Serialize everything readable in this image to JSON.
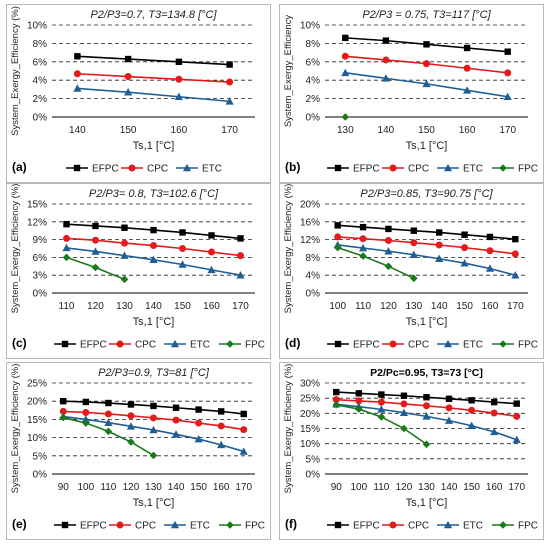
{
  "figure": {
    "background": "#ffffff",
    "series_styles": {
      "EFPC": {
        "color": "#000000",
        "marker": "square"
      },
      "CPC": {
        "color": "#e41a1c",
        "marker": "circle"
      },
      "ETC": {
        "color": "#1f5f96",
        "marker": "triangle"
      },
      "FPC": {
        "color": "#1a7a1a",
        "marker": "diamond"
      }
    }
  },
  "chart_data": [
    {
      "type": "line",
      "letter": "(a)",
      "title_prefix": "P2/P3",
      "title_rest": "=0.7, T3=134.8 [°C]",
      "title_style": "italic",
      "xlabel": "Ts,1 [°C]",
      "ylabel": "System_Exergy_Efficiency (%)",
      "x": [
        140,
        150,
        160,
        170
      ],
      "xlim": [
        135,
        175
      ],
      "ylim": [
        0,
        10
      ],
      "yticks": [
        "0%",
        "2%",
        "4%",
        "6%",
        "8%",
        "10%"
      ],
      "ytick_values": [
        0,
        2,
        4,
        6,
        8,
        10
      ],
      "grid": true,
      "legend_position": "bottom",
      "legend": [
        "EFPC",
        "CPC",
        "ETC"
      ],
      "series": [
        {
          "name": "EFPC",
          "x": [
            140,
            150,
            160,
            170
          ],
          "values": [
            6.6,
            6.3,
            6.0,
            5.7
          ]
        },
        {
          "name": "CPC",
          "x": [
            140,
            150,
            160,
            170
          ],
          "values": [
            4.7,
            4.4,
            4.1,
            3.8
          ]
        },
        {
          "name": "ETC",
          "x": [
            140,
            150,
            160,
            170
          ],
          "values": [
            3.1,
            2.7,
            2.2,
            1.7
          ]
        }
      ]
    },
    {
      "type": "line",
      "letter": "(b)",
      "title_prefix": "P2/P3",
      "title_rest": " = 0.75, T3=117 [°C]",
      "title_style": "italic",
      "xlabel": "Ts,1 [°C]",
      "ylabel": "System_Exergy_Efficiency",
      "x": [
        130,
        140,
        150,
        160,
        170
      ],
      "xlim": [
        125,
        175
      ],
      "ylim": [
        0,
        10
      ],
      "yticks": [
        "0%",
        "2%",
        "4%",
        "6%",
        "8%",
        "10%"
      ],
      "ytick_values": [
        0,
        2,
        4,
        6,
        8,
        10
      ],
      "grid": true,
      "legend_position": "bottom",
      "legend": [
        "EFPC",
        "CPC",
        "ETC",
        "FPC"
      ],
      "series": [
        {
          "name": "EFPC",
          "x": [
            130,
            140,
            150,
            160,
            170
          ],
          "values": [
            8.6,
            8.3,
            7.9,
            7.5,
            7.1
          ]
        },
        {
          "name": "CPC",
          "x": [
            130,
            140,
            150,
            160,
            170
          ],
          "values": [
            6.6,
            6.2,
            5.8,
            5.3,
            4.8
          ]
        },
        {
          "name": "ETC",
          "x": [
            130,
            140,
            150,
            160,
            170
          ],
          "values": [
            4.8,
            4.2,
            3.6,
            2.9,
            2.2
          ]
        },
        {
          "name": "FPC",
          "x": [
            130
          ],
          "values": [
            0.0
          ]
        }
      ]
    },
    {
      "type": "line",
      "letter": "(c)",
      "title_prefix": "P2/P3",
      "title_rest": "= 0.8, T3=102.6 [°C]",
      "title_style": "italic",
      "xlabel": "Ts,1 [°C]",
      "ylabel": "System_Exergy_Efficiency (%)",
      "x": [
        110,
        120,
        130,
        140,
        150,
        160,
        170
      ],
      "xlim": [
        105,
        175
      ],
      "ylim": [
        0,
        15
      ],
      "yticks": [
        "0%",
        "3%",
        "6%",
        "9%",
        "12%",
        "15%"
      ],
      "ytick_values": [
        0,
        3,
        6,
        9,
        12,
        15
      ],
      "grid": true,
      "legend_position": "bottom",
      "legend": [
        "EFPC",
        "CPC",
        "ETC",
        "FPC"
      ],
      "series": [
        {
          "name": "EFPC",
          "x": [
            110,
            120,
            130,
            140,
            150,
            160,
            170
          ],
          "values": [
            11.6,
            11.3,
            11.0,
            10.6,
            10.2,
            9.7,
            9.2
          ]
        },
        {
          "name": "CPC",
          "x": [
            110,
            120,
            130,
            140,
            150,
            160,
            170
          ],
          "values": [
            9.2,
            8.9,
            8.4,
            8.0,
            7.5,
            6.9,
            6.3
          ]
        },
        {
          "name": "ETC",
          "x": [
            110,
            120,
            130,
            140,
            150,
            160,
            170
          ],
          "values": [
            7.6,
            7.0,
            6.3,
            5.6,
            4.8,
            3.9,
            3.0
          ]
        },
        {
          "name": "FPC",
          "x": [
            110,
            120,
            130
          ],
          "values": [
            6.0,
            4.3,
            2.3
          ]
        }
      ]
    },
    {
      "type": "line",
      "letter": "(d)",
      "title_prefix": "P2/P3",
      "title_rest": "=0.85, T3=90.75 [°C]",
      "title_style": "italic",
      "xlabel": "Ts,1 [°C]",
      "ylabel": "System_Exergy_Efficiency (%)",
      "x": [
        100,
        110,
        120,
        130,
        140,
        150,
        160,
        170
      ],
      "xlim": [
        95,
        175
      ],
      "ylim": [
        0,
        20
      ],
      "yticks": [
        "0%",
        "4%",
        "8%",
        "12%",
        "16%",
        "20%"
      ],
      "ytick_values": [
        0,
        4,
        8,
        12,
        16,
        20
      ],
      "grid": true,
      "legend_position": "bottom",
      "legend": [
        "EFPC",
        "CPC",
        "ETC",
        "FPC"
      ],
      "series": [
        {
          "name": "EFPC",
          "x": [
            100,
            110,
            120,
            130,
            140,
            150,
            160,
            170
          ],
          "values": [
            15.2,
            14.8,
            14.4,
            14.0,
            13.6,
            13.1,
            12.6,
            12.1
          ]
        },
        {
          "name": "CPC",
          "x": [
            100,
            110,
            120,
            130,
            140,
            150,
            160,
            170
          ],
          "values": [
            12.6,
            12.2,
            11.8,
            11.3,
            10.8,
            10.2,
            9.5,
            8.8
          ]
        },
        {
          "name": "ETC",
          "x": [
            100,
            110,
            120,
            130,
            140,
            150,
            160,
            170
          ],
          "values": [
            10.8,
            10.1,
            9.4,
            8.6,
            7.7,
            6.7,
            5.5,
            4.0
          ]
        },
        {
          "name": "FPC",
          "x": [
            100,
            110,
            120,
            130
          ],
          "values": [
            10.2,
            8.3,
            6.0,
            3.3
          ]
        }
      ]
    },
    {
      "type": "line",
      "letter": "(e)",
      "title_prefix": "P2/P3",
      "title_rest": "=0.9, T3=81 [°C]",
      "title_style": "italic",
      "xlabel": "Ts,1 [°C]",
      "ylabel": "System_Exergy_Efficiency (%)",
      "x": [
        90,
        100,
        110,
        120,
        130,
        140,
        150,
        160,
        170
      ],
      "xlim": [
        85,
        175
      ],
      "ylim": [
        0,
        25
      ],
      "yticks": [
        "0%",
        "5%",
        "10%",
        "15%",
        "20%",
        "25%"
      ],
      "ytick_values": [
        0,
        5,
        10,
        15,
        20,
        25
      ],
      "grid": true,
      "legend_position": "bottom",
      "legend": [
        "EFPC",
        "CPC",
        "ETC",
        "FPC"
      ],
      "series": [
        {
          "name": "EFPC",
          "x": [
            90,
            100,
            110,
            120,
            130,
            140,
            150,
            160,
            170
          ],
          "values": [
            20.0,
            19.8,
            19.5,
            19.1,
            18.7,
            18.2,
            17.7,
            17.2,
            16.5
          ]
        },
        {
          "name": "CPC",
          "x": [
            90,
            100,
            110,
            120,
            130,
            140,
            150,
            160,
            170
          ],
          "values": [
            17.2,
            16.9,
            16.5,
            16.0,
            15.4,
            14.8,
            14.0,
            13.2,
            12.2
          ]
        },
        {
          "name": "ETC",
          "x": [
            90,
            100,
            110,
            120,
            130,
            140,
            150,
            160,
            170
          ],
          "values": [
            15.8,
            15.0,
            14.1,
            13.1,
            12.1,
            10.9,
            9.6,
            8.0,
            6.2
          ]
        },
        {
          "name": "FPC",
          "x": [
            90,
            100,
            110,
            120,
            130
          ],
          "values": [
            15.5,
            14.0,
            11.7,
            8.8,
            5.1
          ]
        }
      ]
    },
    {
      "type": "line",
      "letter": "(f)",
      "title_prefix": "P2/Pc",
      "title_rest": "=0.95, T3=73 [°C]",
      "title_style": "bold",
      "xlabel": "Ts,1 [°C]",
      "ylabel": "System_Exergy_Efficiency (%)",
      "x": [
        90,
        100,
        110,
        120,
        130,
        140,
        150,
        160,
        170
      ],
      "xlim": [
        85,
        175
      ],
      "ylim": [
        0,
        30
      ],
      "yticks": [
        "0%",
        "5%",
        "10%",
        "15%",
        "20%",
        "25%",
        "30%"
      ],
      "ytick_values": [
        0,
        5,
        10,
        15,
        20,
        25,
        30
      ],
      "grid": true,
      "legend_position": "bottom",
      "legend": [
        "EFPC",
        "CPC",
        "ETC",
        "FPC"
      ],
      "series": [
        {
          "name": "EFPC",
          "x": [
            90,
            100,
            110,
            120,
            130,
            140,
            150,
            160,
            170
          ],
          "values": [
            27.0,
            26.6,
            26.2,
            25.8,
            25.3,
            24.8,
            24.3,
            23.7,
            23.2
          ]
        },
        {
          "name": "CPC",
          "x": [
            90,
            100,
            110,
            120,
            130,
            140,
            150,
            160,
            170
          ],
          "values": [
            24.5,
            24.1,
            23.7,
            23.1,
            22.5,
            21.8,
            21.0,
            20.1,
            19.0
          ]
        },
        {
          "name": "ETC",
          "x": [
            90,
            100,
            110,
            120,
            130,
            140,
            150,
            160,
            170
          ],
          "values": [
            23.0,
            22.2,
            21.3,
            20.2,
            19.0,
            17.6,
            15.9,
            13.9,
            11.3
          ]
        },
        {
          "name": "FPC",
          "x": [
            90,
            100,
            110,
            120,
            130
          ],
          "values": [
            22.8,
            21.4,
            18.8,
            15.0,
            9.8
          ]
        }
      ]
    }
  ]
}
